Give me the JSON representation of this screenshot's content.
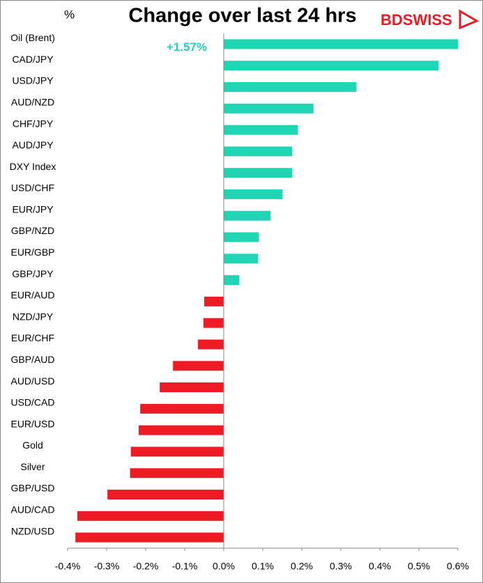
{
  "chart_data": {
    "type": "hbar",
    "title": "Change over last 24 hrs",
    "ylabel": "%",
    "brand": "BDSWISS",
    "categories": [
      "Oil (Brent)",
      "CAD/JPY",
      "USD/JPY",
      "AUD/NZD",
      "CHF/JPY",
      "AUD/JPY",
      "DXY Index",
      "USD/CHF",
      "EUR/JPY",
      "GBP/NZD",
      "EUR/GBP",
      "GBP/JPY",
      "EUR/AUD",
      "NZD/JPY",
      "EUR/CHF",
      "GBP/AUD",
      "AUD/USD",
      "USD/CAD",
      "EUR/USD",
      "Gold",
      "Silver",
      "GBP/USD",
      "AUD/CAD",
      "NZD/USD"
    ],
    "values": [
      1.57,
      0.55,
      0.34,
      0.23,
      0.19,
      0.175,
      0.175,
      0.15,
      0.12,
      0.09,
      0.088,
      0.04,
      -0.05,
      -0.052,
      -0.066,
      -0.13,
      -0.164,
      -0.214,
      -0.218,
      -0.238,
      -0.24,
      -0.298,
      -0.375,
      -0.38
    ],
    "value_labels": [
      "+1.57%",
      null,
      null,
      null,
      null,
      null,
      null,
      null,
      null,
      null,
      null,
      null,
      null,
      null,
      null,
      null,
      null,
      null,
      null,
      null,
      null,
      null,
      null,
      null
    ],
    "positive_color": "#1fd5b3",
    "negative_color": "#ed1c24",
    "xlim": [
      -0.4,
      0.6
    ],
    "xticks": [
      {
        "value": -0.4,
        "label": "-0.4%"
      },
      {
        "value": -0.3,
        "label": "-0.3%"
      },
      {
        "value": -0.2,
        "label": "-0.2%"
      },
      {
        "value": -0.1,
        "label": "-0.1%"
      },
      {
        "value": 0,
        "label": "0.0%"
      },
      {
        "value": 0.1,
        "label": "0.1%"
      },
      {
        "value": 0.2,
        "label": "0.2%"
      },
      {
        "value": 0.3,
        "label": "0.3%"
      },
      {
        "value": 0.4,
        "label": "0.4%"
      },
      {
        "value": 0.5,
        "label": "0.5%"
      },
      {
        "value": 0.6,
        "label": "0.6%"
      }
    ],
    "grid": false
  }
}
